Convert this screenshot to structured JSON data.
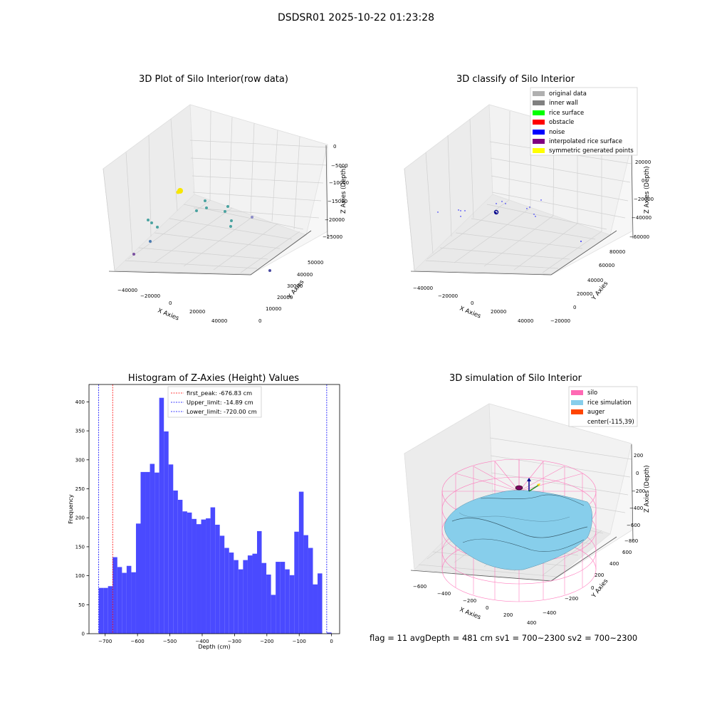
{
  "suptitle": "DSDSR01 2025-10-22 01:23:28",
  "panel1": {
    "title": "3D Plot of Silo Interior(row data)",
    "xlabel": "X Axies",
    "ylabel": "Y Axies",
    "zlabel": "Z Axies (Depth)",
    "xticks": [
      "−40000",
      "−20000",
      "0",
      "20000",
      "40000"
    ],
    "yticks": [
      "0",
      "10000",
      "20000",
      "30000",
      "40000",
      "50000"
    ],
    "zticks": [
      "0",
      "−5000",
      "−10000",
      "−15000",
      "−20000",
      "−25000"
    ]
  },
  "panel2": {
    "title": "3D classify of Silo Interior",
    "xlabel": "X Axies",
    "ylabel": "Y Axies",
    "zlabel": "Z Axies (Depth)",
    "xticks": [
      "−40000",
      "−20000",
      "0",
      "20000",
      "40000"
    ],
    "yticks": [
      "−20000",
      "0",
      "20000",
      "40000",
      "60000",
      "80000"
    ],
    "zticks": [
      "20000",
      "0",
      "−20000",
      "−40000",
      "−60000"
    ],
    "legend": [
      {
        "label": "original data",
        "color": "#b0b0b0"
      },
      {
        "label": "inner wall",
        "color": "#808080"
      },
      {
        "label": "rice surface",
        "color": "#00ff00"
      },
      {
        "label": "obstacle",
        "color": "#ff0000"
      },
      {
        "label": "noise",
        "color": "#0000ff"
      },
      {
        "label": "interpolated rice surface",
        "color": "#800080"
      },
      {
        "label": "symmetric generated points",
        "color": "#ffff00"
      }
    ]
  },
  "panel3": {
    "title": "Histogram of Z-Axies (Height) Values",
    "xlabel": "Depth (cm)",
    "ylabel": "Frequency",
    "legend": [
      {
        "label": "first_peak: -676.83 cm",
        "color": "#ff0000"
      },
      {
        "label": "Upper_limit: -14.89 cm",
        "color": "#0000ff"
      },
      {
        "label": "Lower_limit: -720.00 cm",
        "color": "#0000ff"
      }
    ]
  },
  "panel4": {
    "title": "3D simulation of Silo Interior",
    "xlabel": "X Axies",
    "ylabel": "Y Axies",
    "zlabel": "Z Axies (Depth)",
    "xticks": [
      "−600",
      "−400",
      "−200",
      "0",
      "200",
      "400"
    ],
    "yticks": [
      "−400",
      "−200",
      "0",
      "200",
      "400",
      "600"
    ],
    "zticks": [
      "200",
      "0",
      "−200",
      "−400",
      "−600",
      "−800"
    ],
    "legend": [
      {
        "label": "silo",
        "color": "#ff69b4"
      },
      {
        "label": "rice simulation",
        "color": "#87ceeb"
      },
      {
        "label": "auger",
        "color": "#ff4500"
      },
      {
        "label": "center(-115,39)",
        "color": ""
      }
    ]
  },
  "footer": "flag = 11   avgDepth = 481 cm   sv1 = 700~2300   sv2 = 700~2300",
  "chart_data": [
    {
      "type": "scatter",
      "title": "3D Plot of Silo Interior(row data)",
      "xlabel": "X Axies",
      "ylabel": "Y Axies",
      "zlabel": "Z Axies (Depth)",
      "xlim": [
        -50000,
        50000
      ],
      "ylim": [
        0,
        55000
      ],
      "zlim": [
        -28000,
        0
      ]
    },
    {
      "type": "scatter",
      "title": "3D classify of Silo Interior",
      "xlabel": "X Axies",
      "ylabel": "Y Axies",
      "zlabel": "Z Axies (Depth)",
      "xlim": [
        -50000,
        50000
      ],
      "ylim": [
        -20000,
        80000
      ],
      "zlim": [
        -60000,
        20000
      ]
    },
    {
      "type": "bar",
      "title": "Histogram of Z-Axies (Height) Values",
      "xlabel": "Depth (cm)",
      "ylabel": "Frequency",
      "xlim": [
        -750,
        25
      ],
      "ylim": [
        0,
        430
      ],
      "xticks": [
        -700,
        -600,
        -500,
        -400,
        -300,
        -200,
        -100,
        0
      ],
      "yticks": [
        0,
        50,
        100,
        150,
        200,
        250,
        300,
        350,
        400
      ],
      "bin_start": -720,
      "bin_width": 14.4,
      "values": [
        79,
        79,
        82,
        132,
        115,
        105,
        117,
        106,
        190,
        279,
        279,
        293,
        278,
        407,
        349,
        292,
        247,
        231,
        211,
        209,
        198,
        189,
        197,
        199,
        218,
        188,
        169,
        148,
        140,
        127,
        111,
        127,
        135,
        138,
        177,
        122,
        102,
        67,
        124,
        124,
        111,
        101,
        176,
        245,
        170,
        148,
        85,
        104,
        0,
        2
      ],
      "vlines": [
        {
          "label": "first_peak: -676.83 cm",
          "x": -676.83,
          "color": "#ff0000"
        },
        {
          "label": "Upper_limit: -14.89 cm",
          "x": -14.89,
          "color": "#0000ff"
        },
        {
          "label": "Lower_limit: -720.00 cm",
          "x": -720.0,
          "color": "#0000ff"
        }
      ],
      "series_color": "#4a4aff"
    },
    {
      "type": "other",
      "title": "3D simulation of Silo Interior",
      "xlabel": "X Axies",
      "ylabel": "Y Axies",
      "zlabel": "Z Axies (Depth)",
      "xlim": [
        -700,
        450
      ],
      "ylim": [
        -450,
        650
      ],
      "zlim": [
        -850,
        300
      ]
    }
  ]
}
